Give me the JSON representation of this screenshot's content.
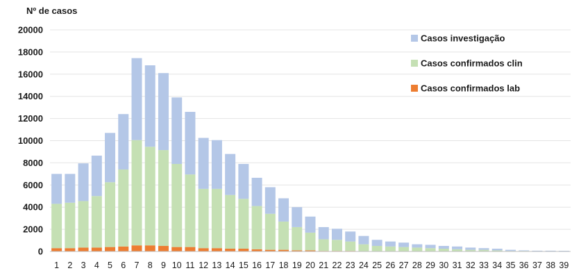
{
  "chart_data": {
    "type": "bar",
    "stacked": true,
    "title": "",
    "ylabel": "Nº de casos",
    "xlabel": "",
    "ylim": [
      0,
      20000
    ],
    "yticks": [
      0,
      2000,
      4000,
      6000,
      8000,
      10000,
      12000,
      14000,
      16000,
      18000,
      20000
    ],
    "grid": true,
    "legend_position": "top-right",
    "categories": [
      "1",
      "2",
      "3",
      "4",
      "5",
      "6",
      "7",
      "8",
      "9",
      "10",
      "11",
      "12",
      "13",
      "14",
      "15",
      "16",
      "17",
      "18",
      "19",
      "20",
      "21",
      "22",
      "23",
      "24",
      "25",
      "26",
      "27",
      "28",
      "29",
      "30",
      "31",
      "32",
      "33",
      "34",
      "35",
      "36",
      "37",
      "38",
      "39"
    ],
    "series": [
      {
        "name": "Casos confirmados lab",
        "color": "#ed7d31",
        "values": [
          300,
          300,
          350,
          350,
          400,
          450,
          550,
          550,
          500,
          400,
          400,
          300,
          300,
          250,
          250,
          200,
          150,
          150,
          100,
          100,
          50,
          50,
          50,
          0,
          0,
          0,
          0,
          0,
          0,
          0,
          0,
          0,
          0,
          0,
          0,
          0,
          0,
          0,
          0
        ]
      },
      {
        "name": "Casos confirmados clin",
        "color": "#c5e0b4",
        "values": [
          4000,
          4100,
          4200,
          4650,
          5850,
          6950,
          9500,
          8900,
          8650,
          7500,
          6550,
          5350,
          5350,
          4850,
          4500,
          3900,
          3250,
          2550,
          2100,
          1600,
          1050,
          1000,
          850,
          650,
          500,
          450,
          400,
          350,
          300,
          250,
          200,
          150,
          150,
          100,
          50,
          50,
          30,
          30,
          30
        ]
      },
      {
        "name": "Casos investigação",
        "color": "#b4c7e7",
        "values": [
          2700,
          2600,
          3400,
          3650,
          4450,
          5000,
          7400,
          7350,
          6950,
          6000,
          5650,
          4600,
          4400,
          3700,
          3150,
          2550,
          2400,
          2100,
          1800,
          1450,
          1100,
          1000,
          900,
          750,
          550,
          450,
          400,
          300,
          300,
          250,
          250,
          200,
          150,
          150,
          100,
          50,
          40,
          40,
          30
        ]
      }
    ]
  }
}
